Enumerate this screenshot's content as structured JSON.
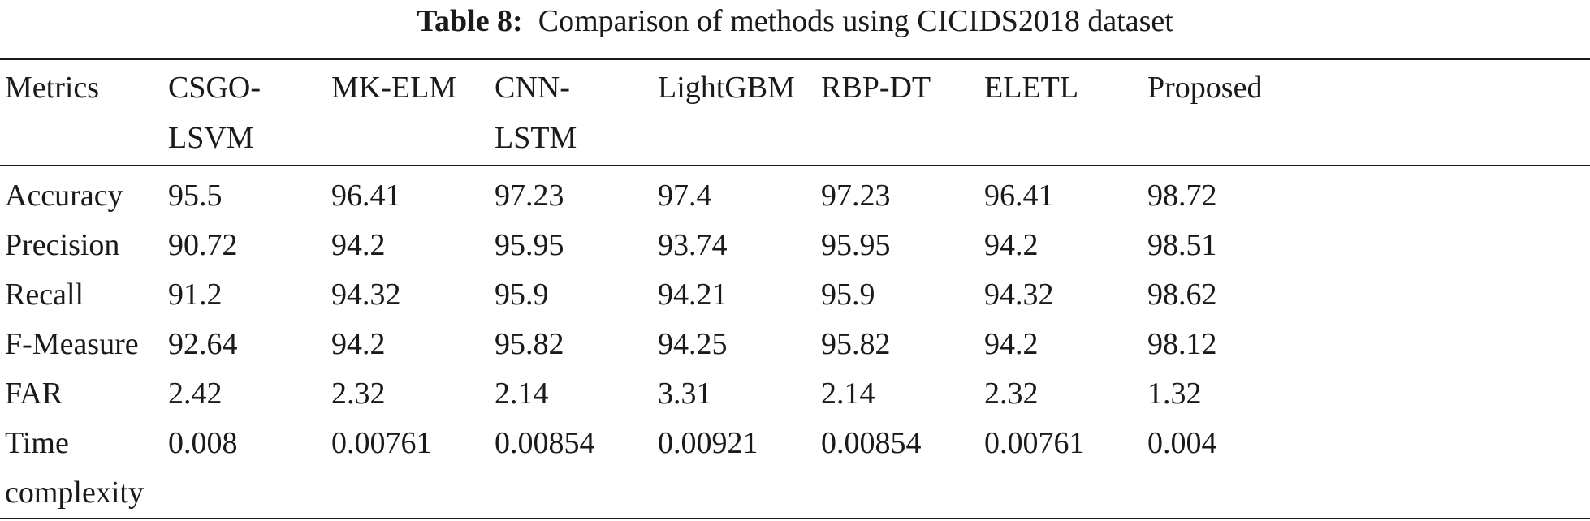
{
  "caption": {
    "label": "Table 8:",
    "text": "Comparison of methods using CICIDS2018 dataset"
  },
  "table": {
    "headers": [
      "Metrics",
      "CSGO-LSVM",
      "MK-ELM",
      "CNN-LSTM",
      "LightGBM",
      "RBP-DT",
      "ELETL",
      "Proposed"
    ],
    "rows": [
      [
        "Accuracy",
        "95.5",
        "96.41",
        "97.23",
        "97.4",
        "97.23",
        "96.41",
        "98.72"
      ],
      [
        "Precision",
        "90.72",
        "94.2",
        "95.95",
        "93.74",
        "95.95",
        "94.2",
        "98.51"
      ],
      [
        "Recall",
        "91.2",
        "94.32",
        "95.9",
        "94.21",
        "95.9",
        "94.32",
        "98.62"
      ],
      [
        "F-Measure",
        "92.64",
        "94.2",
        "95.82",
        "94.25",
        "95.82",
        "94.2",
        "98.12"
      ],
      [
        "FAR",
        "2.42",
        "2.32",
        "2.14",
        "3.31",
        "2.14",
        "2.32",
        "1.32"
      ],
      [
        "Time complexity",
        "0.008",
        "0.00761",
        "0.00854",
        "0.00921",
        "0.00854",
        "0.00761",
        "0.004"
      ]
    ]
  }
}
